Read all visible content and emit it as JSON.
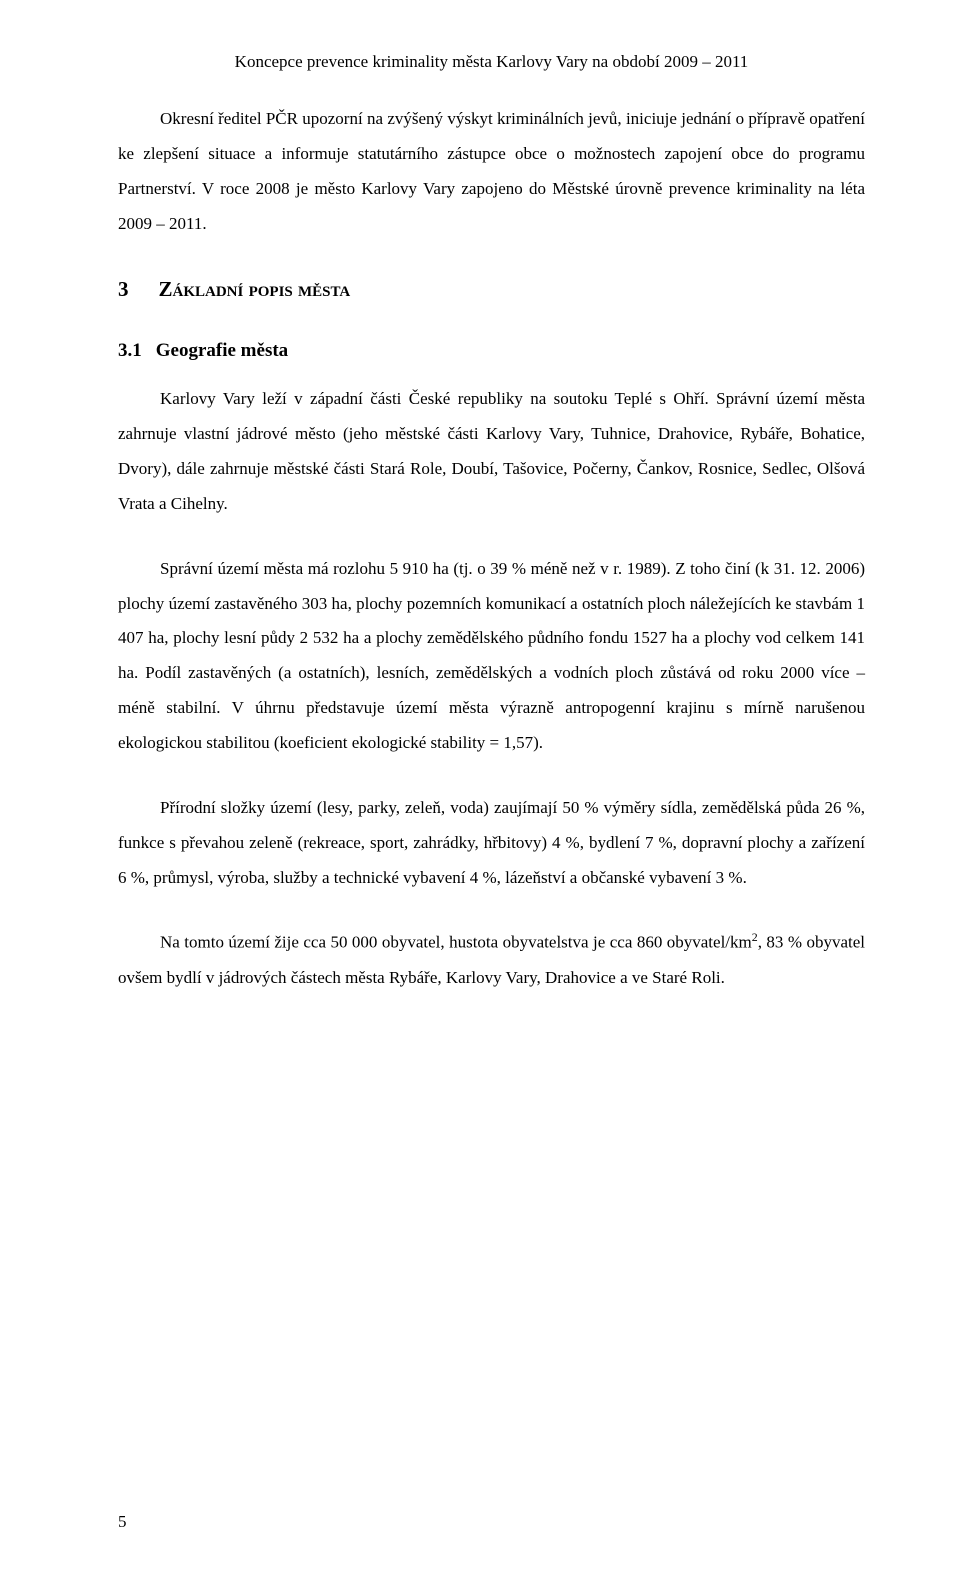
{
  "header": "Koncepce prevence kriminality města Karlovy Vary na období 2009 – 2011",
  "p1": "Okresní ředitel PČR upozorní na zvýšený výskyt kriminálních jevů, iniciuje jednání o přípravě opatření ke zlepšení situace a informuje statutárního zástupce obce o možnostech zapojení obce do programu Partnerství. V roce 2008 je město Karlovy Vary zapojeno do Městské úrovně prevence kriminality na léta 2009 – 2011.",
  "h1": {
    "num": "3",
    "text": "Základní popis města"
  },
  "h2": {
    "num": "3.1",
    "text": "Geografie města"
  },
  "p2": "Karlovy Vary leží v západní části České republiky na soutoku Teplé s Ohří. Správní území města zahrnuje vlastní jádrové město (jeho městské části Karlovy Vary, Tuhnice, Drahovice, Rybáře, Bohatice, Dvory), dále zahrnuje městské části Stará Role, Doubí, Tašovice, Počerny, Čankov, Rosnice, Sedlec, Olšová Vrata a Cihelny.",
  "p3": "Správní území města má rozlohu 5 910 ha (tj. o 39 % méně než v r. 1989). Z toho činí (k 31. 12. 2006) plochy území zastavěného 303 ha, plochy pozemních komunikací a ostatních ploch náležejících ke stavbám 1 407 ha, plochy lesní půdy 2 532 ha a plochy zemědělského půdního fondu 1527 ha a plochy vod celkem 141 ha. Podíl zastavěných (a ostatních), lesních, zemědělských a vodních ploch zůstává od roku 2000 více – méně stabilní. V úhrnu představuje území města výrazně antropogenní krajinu s mírně narušenou ekologickou stabilitou (koeficient ekologické stability = 1,57).",
  "p4": "Přírodní složky území (lesy, parky, zeleň, voda) zaujímají 50 % výměry sídla, zemědělská půda 26 %, funkce s převahou zeleně (rekreace, sport, zahrádky, hřbitovy) 4 %, bydlení 7 %, dopravní plochy a zařízení 6 %, průmysl, výroba, služby a technické vybavení 4 %, lázeňství a občanské vybavení 3 %.",
  "p5_a": "Na tomto území žije cca 50 000 obyvatel, hustota obyvatelstva je cca 860 obyvatel/km",
  "p5_b": ", 83 % obyvatel ovšem bydlí v jádrových částech města Rybáře, Karlovy Vary, Drahovice a ve Staré Roli.",
  "page_number": "5"
}
